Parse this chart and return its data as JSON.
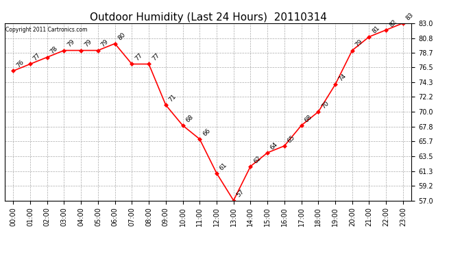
{
  "title": "Outdoor Humidity (Last 24 Hours)  20110314",
  "copyright": "Copyright 2011 Cartronics.com",
  "x_labels": [
    "00:00",
    "01:00",
    "02:00",
    "03:00",
    "04:00",
    "05:00",
    "06:00",
    "07:00",
    "08:00",
    "09:00",
    "10:00",
    "11:00",
    "12:00",
    "13:00",
    "14:00",
    "15:00",
    "16:00",
    "17:00",
    "18:00",
    "19:00",
    "20:00",
    "21:00",
    "22:00",
    "23:00"
  ],
  "y_values": [
    76,
    77,
    78,
    79,
    79,
    79,
    80,
    77,
    77,
    71,
    68,
    66,
    61,
    57,
    62,
    64,
    65,
    68,
    70,
    74,
    79,
    81,
    82,
    83
  ],
  "y_labels": [
    57.0,
    59.2,
    61.3,
    63.5,
    65.7,
    67.8,
    70.0,
    72.2,
    74.3,
    76.5,
    78.7,
    80.8,
    83.0
  ],
  "ylim": [
    57.0,
    83.0
  ],
  "line_color": "red",
  "marker": "D",
  "marker_size": 3,
  "marker_color": "red",
  "bg_color": "white",
  "grid_color": "#aaaaaa",
  "title_fontsize": 11,
  "tick_fontsize": 7,
  "annotation_fontsize": 6.5
}
